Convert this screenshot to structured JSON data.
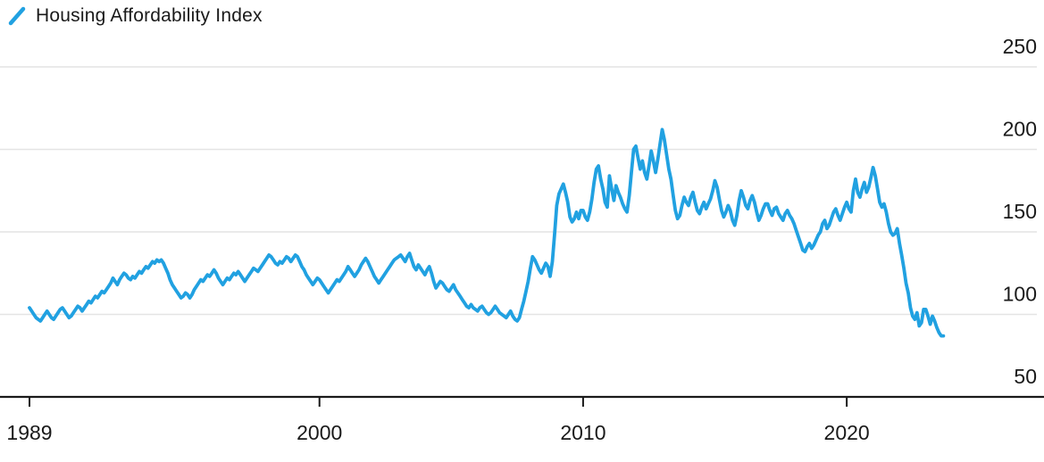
{
  "legend": {
    "label": "Housing Affordability Index",
    "icon": "line-series-slash-icon"
  },
  "colors": {
    "series": "#21a1e1",
    "gridline": "#e4e4e4",
    "axis": "#1a1a1a",
    "text": "#1a1a1a",
    "background": "#ffffff"
  },
  "chart_data": {
    "type": "line",
    "title": "Housing Affordability Index",
    "xlabel": "",
    "ylabel": "",
    "ylim": [
      50,
      250
    ],
    "y_ticks": [
      250,
      200,
      150,
      100,
      50
    ],
    "x_ticks": [
      {
        "label": "1989",
        "year": 1989
      },
      {
        "label": "2000",
        "year": 2000
      },
      {
        "label": "2010",
        "year": 2010
      },
      {
        "label": "2020",
        "year": 2020
      }
    ],
    "grid": "horizontal",
    "legend_position": "top-left",
    "series": [
      {
        "name": "Housing Affordability Index",
        "frequency": "monthly",
        "start_year": 1989,
        "end_year": 2023.67,
        "values": [
          104,
          102,
          100,
          98,
          97,
          96,
          98,
          100,
          102,
          100,
          98,
          97,
          99,
          101,
          103,
          104,
          102,
          100,
          98,
          99,
          101,
          103,
          105,
          104,
          102,
          104,
          106,
          108,
          107,
          109,
          111,
          110,
          112,
          114,
          113,
          115,
          117,
          119,
          122,
          120,
          118,
          121,
          123,
          125,
          124,
          122,
          121,
          123,
          122,
          124,
          126,
          125,
          127,
          129,
          128,
          130,
          132,
          131,
          133,
          132,
          133,
          131,
          128,
          125,
          121,
          118,
          116,
          114,
          112,
          110,
          111,
          113,
          112,
          110,
          112,
          115,
          117,
          119,
          121,
          120,
          122,
          124,
          123,
          125,
          127,
          125,
          122,
          120,
          118,
          120,
          122,
          121,
          123,
          125,
          124,
          126,
          124,
          122,
          120,
          122,
          124,
          126,
          128,
          127,
          126,
          128,
          130,
          132,
          134,
          136,
          135,
          133,
          131,
          130,
          132,
          131,
          133,
          135,
          134,
          132,
          134,
          136,
          135,
          132,
          129,
          127,
          124,
          122,
          120,
          118,
          120,
          122,
          121,
          119,
          117,
          115,
          113,
          115,
          117,
          119,
          121,
          120,
          122,
          124,
          126,
          129,
          127,
          125,
          123,
          125,
          127,
          130,
          132,
          134,
          132,
          129,
          126,
          123,
          121,
          119,
          121,
          123,
          125,
          127,
          129,
          131,
          133,
          134,
          135,
          136,
          134,
          132,
          135,
          137,
          133,
          129,
          127,
          130,
          128,
          126,
          124,
          127,
          129,
          125,
          120,
          116,
          118,
          120,
          119,
          117,
          115,
          114,
          116,
          118,
          115,
          113,
          111,
          109,
          107,
          105,
          104,
          106,
          104,
          103,
          102,
          104,
          105,
          103,
          101,
          100,
          101,
          103,
          105,
          103,
          101,
          100,
          99,
          98,
          100,
          102,
          99,
          97,
          96,
          98,
          103,
          108,
          114,
          120,
          128,
          135,
          133,
          130,
          127,
          125,
          128,
          131,
          129,
          123,
          132,
          148,
          166,
          173,
          176,
          179,
          174,
          168,
          159,
          156,
          158,
          162,
          158,
          163,
          163,
          159,
          157,
          162,
          170,
          180,
          188,
          190,
          182,
          176,
          168,
          165,
          184,
          176,
          169,
          178,
          174,
          171,
          167,
          164,
          162,
          172,
          186,
          200,
          202,
          195,
          188,
          193,
          186,
          182,
          190,
          199,
          193,
          186,
          194,
          203,
          212,
          206,
          197,
          188,
          182,
          172,
          163,
          158,
          160,
          166,
          171,
          168,
          166,
          171,
          174,
          168,
          163,
          161,
          165,
          168,
          164,
          167,
          170,
          175,
          181,
          177,
          170,
          163,
          159,
          162,
          166,
          163,
          157,
          154,
          160,
          169,
          175,
          171,
          166,
          164,
          169,
          172,
          168,
          162,
          157,
          160,
          164,
          167,
          167,
          163,
          160,
          164,
          165,
          161,
          159,
          157,
          161,
          163,
          160,
          158,
          155,
          151,
          147,
          143,
          139,
          138,
          141,
          143,
          140,
          142,
          145,
          148,
          150,
          155,
          157,
          152,
          154,
          158,
          162,
          164,
          160,
          157,
          161,
          165,
          168,
          164,
          162,
          175,
          182,
          174,
          171,
          176,
          180,
          174,
          177,
          183,
          189,
          184,
          176,
          168,
          165,
          167,
          162,
          155,
          150,
          148,
          149,
          152,
          143,
          136,
          128,
          119,
          113,
          104,
          99,
          97,
          101,
          93,
          95,
          103,
          103,
          99,
          94,
          99,
          96,
          92,
          89,
          87,
          87
        ]
      }
    ]
  }
}
